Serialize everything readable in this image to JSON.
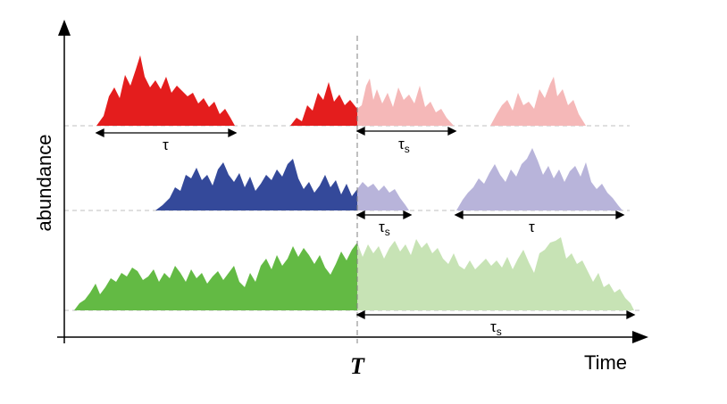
{
  "axes": {
    "y_label": "abundance",
    "x_label": "Time",
    "t_marker": "T"
  },
  "colors": {
    "red": "#e41d1d",
    "red_light": "#f5b8b8",
    "blue": "#34499a",
    "blue_light": "#b8b4da",
    "green": "#63ba44",
    "green_light": "#c7e3b5",
    "baseline": "#bfbfbf",
    "axis": "#000000"
  },
  "intervals": {
    "red_tau": {
      "symbol": "τ",
      "sub": ""
    },
    "red_tau_s": {
      "symbol": "τ",
      "sub": "s"
    },
    "blue_tau_s": {
      "symbol": "τ",
      "sub": "s"
    },
    "blue_tau": {
      "symbol": "τ",
      "sub": ""
    },
    "green_tau_s": {
      "symbol": "τ",
      "sub": "s"
    }
  }
}
